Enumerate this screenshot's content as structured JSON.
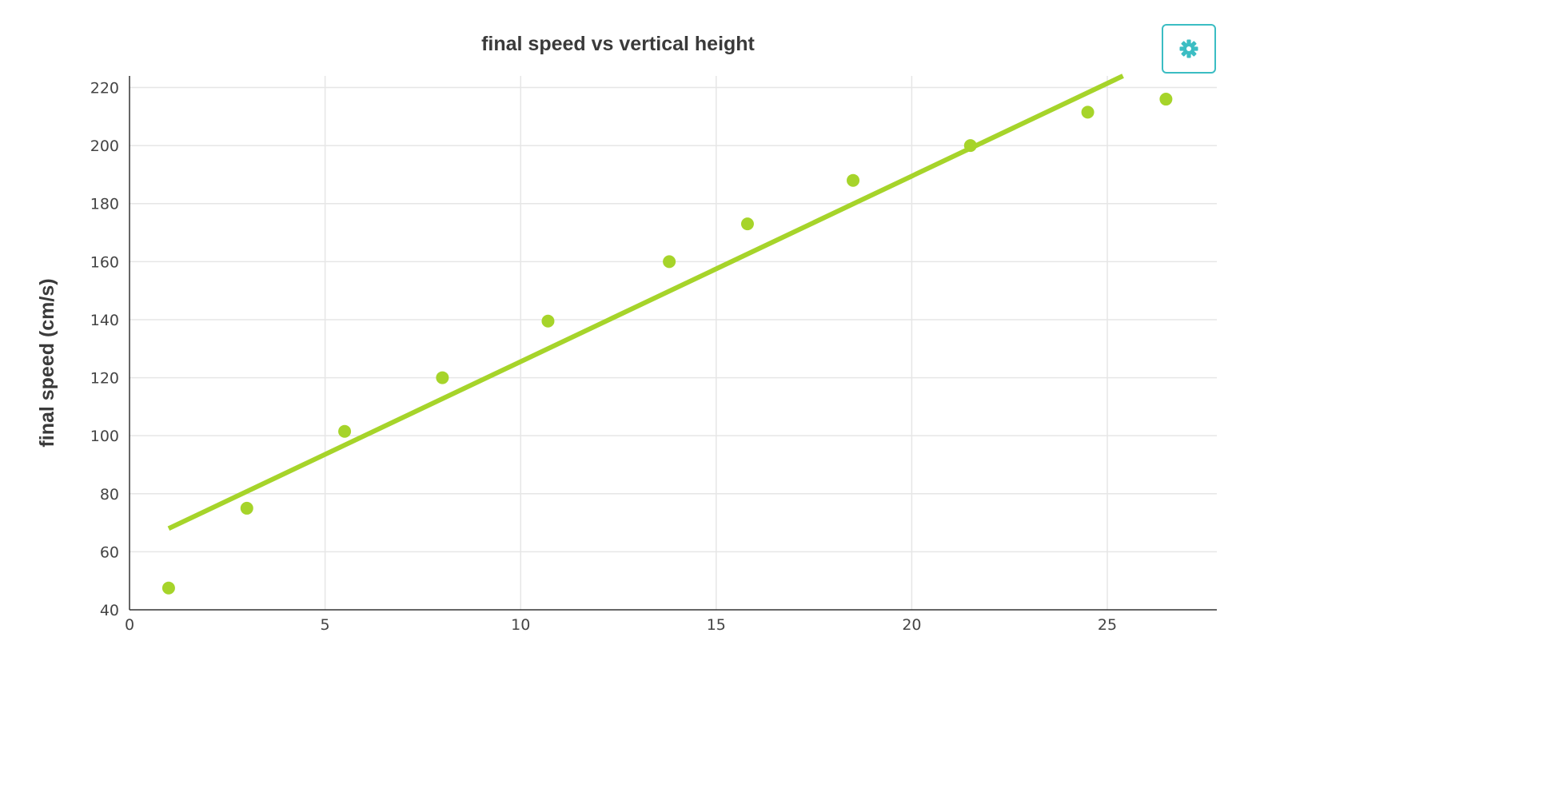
{
  "chart_data": {
    "type": "scatter",
    "title": "final speed vs vertical height",
    "xlabel": "",
    "ylabel": "final speed (cm/s)",
    "xlim": [
      0,
      27.8
    ],
    "ylim": [
      40,
      224
    ],
    "x_ticks": [
      0,
      5,
      10,
      15,
      20,
      25
    ],
    "y_ticks": [
      40,
      60,
      80,
      100,
      120,
      140,
      160,
      180,
      200,
      220
    ],
    "grid": true,
    "legend": "none",
    "colors": {
      "series": "#a6d42a",
      "accent": "#3bbdc3"
    },
    "series": [
      {
        "type": "scatter",
        "points": [
          {
            "x": 1.0,
            "y": 47.5
          },
          {
            "x": 3.0,
            "y": 75
          },
          {
            "x": 5.5,
            "y": 101.5
          },
          {
            "x": 8.0,
            "y": 120
          },
          {
            "x": 10.7,
            "y": 139.5
          },
          {
            "x": 13.8,
            "y": 160
          },
          {
            "x": 15.8,
            "y": 173
          },
          {
            "x": 18.5,
            "y": 188
          },
          {
            "x": 21.5,
            "y": 200
          },
          {
            "x": 24.5,
            "y": 211.5
          },
          {
            "x": 26.5,
            "y": 216
          }
        ]
      },
      {
        "type": "line",
        "points": [
          {
            "x": 1.0,
            "y": 68
          },
          {
            "x": 25.4,
            "y": 224
          }
        ]
      }
    ]
  },
  "toolbar": {
    "settings_icon": "gear-icon"
  }
}
